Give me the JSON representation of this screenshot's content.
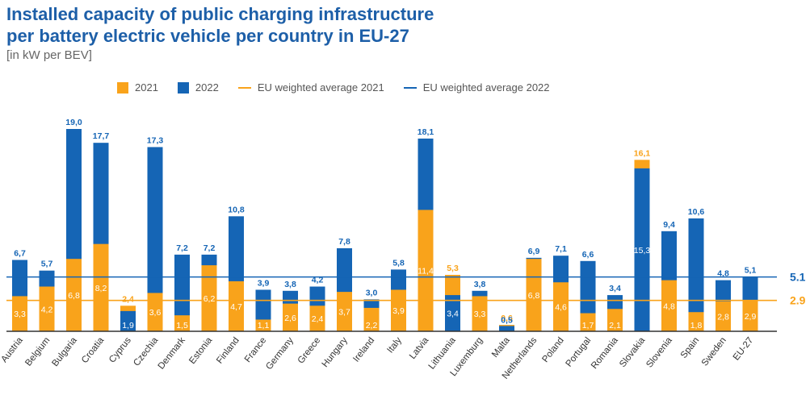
{
  "title_line1": "Installed capacity of public charging infrastructure",
  "title_line2": "per battery electric vehicle per country in EU-27",
  "subtitle": "[in kW per BEV]",
  "legend": {
    "s2021": "2021",
    "s2022": "2022",
    "avg2021": "EU weighted average 2021",
    "avg2022": "EU weighted average 2022"
  },
  "colors": {
    "s2021": "#f9a31b",
    "s2022": "#1565b5",
    "title": "#1d5fa8"
  },
  "chart_data": {
    "type": "bar",
    "categories": [
      "Austria",
      "Belgium",
      "Bulgaria",
      "Croatia",
      "Cyprus",
      "Czechia",
      "Denmark",
      "Estonia",
      "Finland",
      "France",
      "Germany",
      "Greece",
      "Hungary",
      "Ireland",
      "Italy",
      "Latvia",
      "Lithuania",
      "Luxemburg",
      "Malta",
      "Netherlands",
      "Poland",
      "Portugal",
      "Romania",
      "Slovakia",
      "Slovenia",
      "Spain",
      "Sweden",
      "EU-27"
    ],
    "series": [
      {
        "name": "2021",
        "values": [
          3.3,
          4.2,
          6.8,
          8.2,
          2.4,
          3.6,
          1.5,
          6.2,
          4.7,
          1.1,
          2.6,
          2.4,
          3.7,
          2.2,
          3.9,
          11.4,
          5.3,
          3.3,
          0.6,
          6.8,
          4.6,
          1.7,
          2.1,
          16.1,
          4.8,
          1.8,
          2.8,
          2.9
        ],
        "labels": [
          "3,3",
          "4,2",
          "6,8",
          "8,2",
          "2,4",
          "3,6",
          "1,5",
          "6,2",
          "4,7",
          "1,1",
          "2,6",
          "2,4",
          "3,7",
          "2,2",
          "3,9",
          "11,4",
          "5,3",
          "3,3",
          "0,6",
          "6,8",
          "4,6",
          "1,7",
          "2,1",
          "16,1",
          "4,8",
          "1,8",
          "2,8",
          "2,9"
        ]
      },
      {
        "name": "2022",
        "values": [
          6.7,
          5.7,
          19.0,
          17.7,
          1.9,
          17.3,
          7.2,
          7.2,
          10.8,
          3.9,
          3.8,
          4.2,
          7.8,
          3.0,
          5.8,
          18.1,
          3.4,
          3.8,
          0.5,
          6.9,
          7.1,
          6.6,
          3.4,
          15.3,
          9.4,
          10.6,
          4.8,
          5.1
        ],
        "labels": [
          "6,7",
          "5,7",
          "19,0",
          "17,7",
          "1,9",
          "17,3",
          "7,2",
          "7,2",
          "10,8",
          "3,9",
          "3,8",
          "4,2",
          "7,8",
          "3,0",
          "5,8",
          "18,1",
          "3,4",
          "3,8",
          "0,5",
          "6,9",
          "7,1",
          "6,6",
          "3,4",
          "15,3",
          "9,4",
          "10,6",
          "4,8",
          "5,1"
        ]
      }
    ],
    "averages": [
      {
        "name": "EU weighted average 2021",
        "value": 2.9,
        "label": "2.9"
      },
      {
        "name": "EU weighted average 2022",
        "value": 5.1,
        "label": "5.1"
      }
    ],
    "ylim": [
      0,
      19.0
    ],
    "grid": false,
    "legend_position": "top"
  }
}
